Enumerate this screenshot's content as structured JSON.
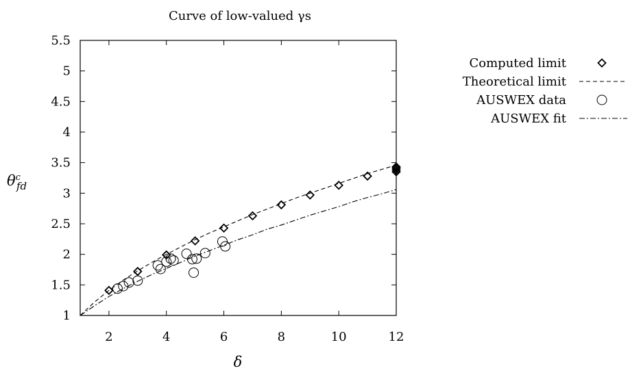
{
  "chart_data": {
    "type": "scatter",
    "title": "Curve of low-valued γs",
    "xlabel": "δ",
    "ylabel_base": "θ",
    "ylabel_sup": "c",
    "ylabel_sub": "fd",
    "xlim": [
      1,
      12
    ],
    "ylim": [
      1,
      5.5
    ],
    "xticks": [
      2,
      4,
      6,
      8,
      10,
      12
    ],
    "yticks": [
      1,
      1.5,
      2,
      2.5,
      3,
      3.5,
      4,
      4.5,
      5,
      5.5
    ],
    "grid": false,
    "legend_position": "right",
    "series": [
      {
        "name": "Computed limit",
        "kind": "points",
        "marker": "diamond",
        "x": [
          2,
          3,
          4,
          5,
          6,
          7,
          8,
          9,
          10,
          11,
          12,
          12,
          12,
          12
        ],
        "y": [
          1.41,
          1.72,
          1.99,
          2.22,
          2.43,
          2.63,
          2.81,
          2.97,
          3.13,
          3.28,
          3.35,
          3.38,
          3.41,
          3.43
        ]
      },
      {
        "name": "Theoretical limit",
        "kind": "line",
        "dash": "dashed",
        "x": [
          1,
          1.5,
          2,
          2.5,
          3,
          3.5,
          4,
          4.5,
          5,
          5.5,
          6,
          6.5,
          7,
          7.5,
          8,
          8.5,
          9,
          9.5,
          10,
          10.5,
          11,
          11.5,
          12
        ],
        "y": [
          1.0,
          1.22,
          1.41,
          1.58,
          1.73,
          1.87,
          2.0,
          2.12,
          2.24,
          2.35,
          2.45,
          2.55,
          2.65,
          2.74,
          2.83,
          2.92,
          3.0,
          3.08,
          3.16,
          3.24,
          3.32,
          3.39,
          3.46
        ]
      },
      {
        "name": "AUSWEX data",
        "kind": "points",
        "marker": "circle",
        "x": [
          2.3,
          2.5,
          2.7,
          3.0,
          3.7,
          3.8,
          4.0,
          4.15,
          4.25,
          4.7,
          4.9,
          4.95,
          5.05,
          5.35,
          5.95,
          6.05
        ],
        "y": [
          1.44,
          1.48,
          1.54,
          1.57,
          1.82,
          1.76,
          1.88,
          1.93,
          1.9,
          2.01,
          1.92,
          1.7,
          1.93,
          2.02,
          2.21,
          2.13
        ]
      },
      {
        "name": "AUSWEX fit",
        "kind": "line",
        "dash": "dashdot",
        "x": [
          1,
          1.5,
          2,
          2.5,
          3,
          3.5,
          4,
          4.5,
          5,
          5.5,
          6,
          6.5,
          7,
          7.5,
          8,
          8.5,
          9,
          9.5,
          10,
          10.5,
          11,
          11.5,
          12
        ],
        "y": [
          1.0,
          1.16,
          1.31,
          1.44,
          1.56,
          1.67,
          1.77,
          1.87,
          1.97,
          2.06,
          2.15,
          2.24,
          2.32,
          2.41,
          2.48,
          2.56,
          2.64,
          2.71,
          2.78,
          2.86,
          2.93,
          2.99,
          3.06
        ]
      }
    ]
  }
}
